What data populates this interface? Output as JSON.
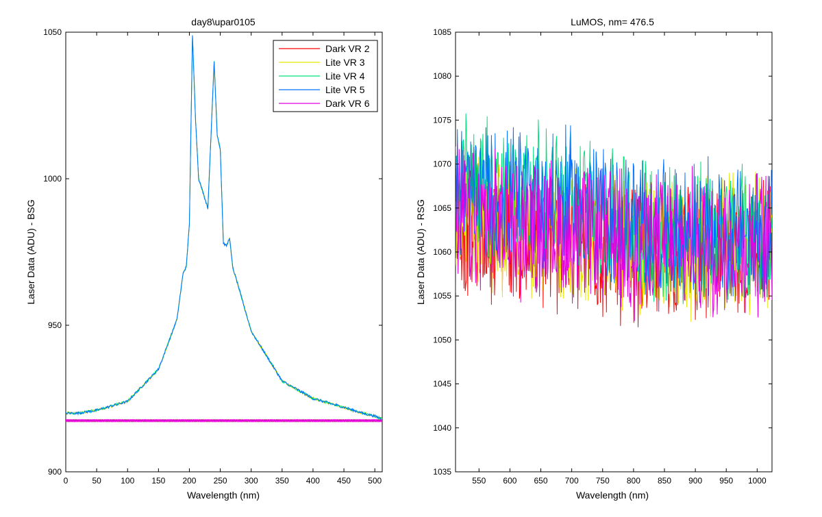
{
  "chart_data": [
    {
      "type": "line",
      "title": "day8\\upar0105",
      "xlabel": "Wavelength (nm)",
      "ylabel": "Laser Data (ADU) - BSG",
      "xlim": [
        0,
        512
      ],
      "ylim": [
        900,
        1050
      ],
      "xticks": [
        "0",
        "50",
        "100",
        "150",
        "200",
        "250",
        "300",
        "350",
        "400",
        "450",
        "500"
      ],
      "yticks": [
        "900",
        "950",
        "1000",
        "1050"
      ],
      "legend_position": "top-right",
      "series": [
        {
          "name": "Dark VR 2",
          "color": "#ff0000",
          "x": [
            0,
            512
          ],
          "y": [
            917,
            917
          ]
        },
        {
          "name": "Lite VR 3",
          "color": "#e6e600",
          "x": [
            0,
            20,
            50,
            100,
            150,
            180,
            190,
            195,
            200,
            205,
            210,
            215,
            230,
            240,
            245,
            250,
            255,
            260,
            265,
            270,
            300,
            350,
            400,
            450,
            480,
            500,
            512
          ],
          "y": [
            920,
            920,
            921,
            924,
            935,
            952,
            968,
            970,
            985,
            1049,
            1020,
            1000,
            990,
            1040,
            1015,
            1010,
            978,
            977,
            980,
            970,
            948,
            931,
            925,
            922,
            920,
            919,
            918
          ]
        },
        {
          "name": "Lite VR 4",
          "color": "#00e07a",
          "x": [
            0,
            20,
            50,
            100,
            150,
            180,
            190,
            195,
            200,
            205,
            210,
            215,
            230,
            240,
            245,
            250,
            255,
            260,
            265,
            270,
            300,
            350,
            400,
            450,
            480,
            500,
            512
          ],
          "y": [
            920,
            920,
            921,
            924,
            935,
            952,
            968,
            970,
            985,
            1049,
            1020,
            1000,
            990,
            1040,
            1015,
            1010,
            978,
            977,
            980,
            970,
            948,
            931,
            925,
            922,
            920,
            919,
            918
          ]
        },
        {
          "name": "Lite VR 5",
          "color": "#0070ff",
          "x": [
            0,
            20,
            50,
            100,
            150,
            180,
            190,
            195,
            200,
            205,
            210,
            215,
            230,
            240,
            245,
            250,
            255,
            260,
            265,
            270,
            300,
            350,
            400,
            450,
            480,
            500,
            512
          ],
          "y": [
            920,
            920,
            921,
            924,
            935,
            952,
            968,
            970,
            985,
            1049,
            1020,
            1000,
            990,
            1040,
            1015,
            1010,
            978,
            977,
            980,
            970,
            948,
            931,
            925,
            922,
            920,
            919,
            918
          ]
        },
        {
          "name": "Dark VR 6",
          "color": "#e000e0",
          "x": [
            0,
            512
          ],
          "y": [
            917,
            917
          ]
        }
      ]
    },
    {
      "type": "line",
      "title": "LuMOS, nm= 476.5",
      "xlabel": "Wavelength (nm)",
      "ylabel": "Laser Data (ADU) - RSG",
      "xlim": [
        512,
        1024
      ],
      "ylim": [
        1035,
        1085
      ],
      "xticks": [
        "550",
        "600",
        "650",
        "700",
        "750",
        "800",
        "850",
        "900",
        "950",
        "1000"
      ],
      "yticks": [
        "1035",
        "1040",
        "1045",
        "1050",
        "1055",
        "1060",
        "1065",
        "1070",
        "1075",
        "1080",
        "1085"
      ],
      "series": [
        {
          "color": "#ff0000",
          "x": [
            512,
            600,
            700,
            800,
            900,
            1000,
            1024
          ],
          "y": [
            1063,
            1062,
            1061,
            1060,
            1060,
            1060,
            1060
          ]
        },
        {
          "color": "#e6e600",
          "x": [
            512,
            600,
            700,
            800,
            900,
            1000,
            1024
          ],
          "y": [
            1064,
            1063,
            1062,
            1061,
            1060,
            1061,
            1061
          ]
        },
        {
          "color": "#00e07a",
          "x": [
            512,
            600,
            700,
            800,
            900,
            1000,
            1024
          ],
          "y": [
            1068,
            1067,
            1066,
            1063,
            1062,
            1062,
            1062
          ]
        },
        {
          "color": "#0070ff",
          "x": [
            512,
            600,
            700,
            800,
            900,
            1000,
            1024
          ],
          "y": [
            1067,
            1066,
            1066,
            1063,
            1062,
            1062,
            1062
          ]
        },
        {
          "color": "#e000e0",
          "x": [
            512,
            600,
            700,
            800,
            900,
            1000,
            1024
          ],
          "y": [
            1064,
            1063,
            1062,
            1061,
            1061,
            1061,
            1061
          ]
        }
      ]
    }
  ]
}
